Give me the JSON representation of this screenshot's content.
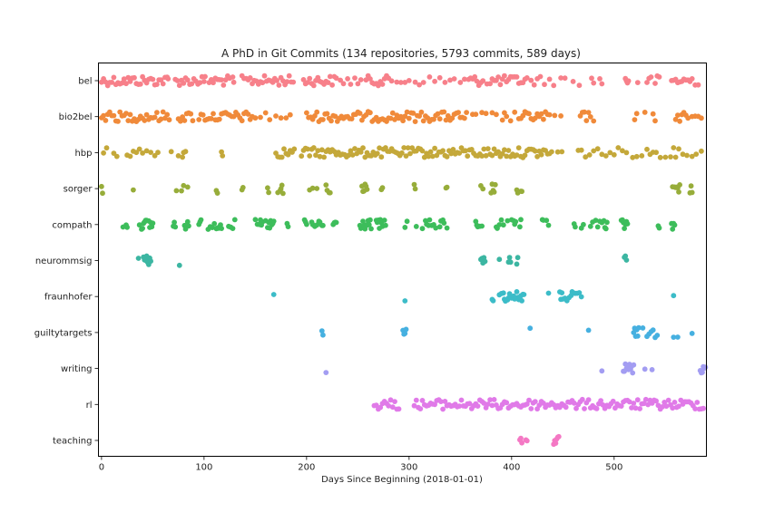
{
  "chart_data": {
    "type": "scatter",
    "title": "A PhD in Git Commits (134 repositories, 5793 commits, 589 days)",
    "xlabel": "Days Since Beginning (2018-01-01)",
    "ylabel": "",
    "xlim": [
      -3,
      590
    ],
    "xticks": [
      0,
      100,
      200,
      300,
      400,
      500
    ],
    "grid": false,
    "legend": "none",
    "categories": [
      "bel",
      "bio2bel",
      "hbp",
      "sorger",
      "compath",
      "neurommsig",
      "fraunhofer",
      "guiltytargets",
      "writing",
      "rl",
      "teaching"
    ],
    "colors": [
      "#f7808a",
      "#f08a3a",
      "#c4a83a",
      "#97ad3a",
      "#3dbd5b",
      "#3cb6a2",
      "#3cbcc8",
      "#46b0e0",
      "#a39df2",
      "#e07ae8",
      "#f478c4"
    ],
    "series": [
      {
        "name": "bel",
        "days": [
          0,
          2,
          4,
          6,
          8,
          10,
          12,
          14,
          16,
          18,
          20,
          22,
          24,
          26,
          28,
          30,
          32,
          34,
          36,
          38,
          40,
          42,
          44,
          46,
          48,
          50,
          52,
          54,
          56,
          58,
          60,
          62,
          64,
          65,
          72,
          74,
          76,
          78,
          80,
          82,
          84,
          86,
          88,
          90,
          92,
          94,
          96,
          98,
          100,
          101,
          105,
          107,
          109,
          111,
          113,
          115,
          117,
          119,
          121,
          123,
          125,
          128,
          129,
          137,
          139,
          141,
          143,
          145,
          147,
          149,
          151,
          153,
          155,
          157,
          159,
          161,
          163,
          165,
          167,
          169,
          171,
          173,
          175,
          177,
          179,
          181,
          183,
          185,
          187,
          197,
          199,
          201,
          203,
          205,
          207,
          209,
          211,
          213,
          215,
          217,
          219,
          221,
          223,
          225,
          227,
          229,
          233,
          236,
          240,
          243,
          247,
          250,
          253,
          258,
          260,
          262,
          264,
          266,
          268,
          270,
          272,
          274,
          276,
          278,
          280,
          283,
          288,
          292,
          296,
          300,
          306,
          310,
          314,
          320,
          325,
          330,
          335,
          340,
          344,
          350,
          354,
          358,
          360,
          362,
          364,
          366,
          368,
          370,
          372,
          376,
          379,
          381,
          383,
          385,
          387,
          389,
          391,
          393,
          395,
          397,
          399,
          401,
          403,
          405,
          407,
          409,
          411,
          413,
          415,
          419,
          422,
          425,
          428,
          432,
          437,
          441,
          448,
          452,
          460,
          466,
          478,
          480,
          486,
          488,
          511,
          512,
          513,
          514,
          523,
          532,
          534,
          536,
          540,
          542,
          544,
          556,
          558,
          560,
          562,
          564,
          566,
          568,
          570,
          572,
          574,
          576,
          579,
          582
        ]
      },
      {
        "name": "bio2bel",
        "days": [
          0,
          2,
          4,
          6,
          8,
          10,
          12,
          14,
          16,
          18,
          20,
          22,
          24,
          26,
          28,
          30,
          32,
          34,
          36,
          38,
          40,
          42,
          44,
          46,
          48,
          50,
          52,
          54,
          56,
          58,
          60,
          62,
          64,
          66,
          75,
          77,
          79,
          81,
          83,
          85,
          87,
          89,
          95,
          97,
          99,
          101,
          103,
          105,
          107,
          109,
          111,
          113,
          115,
          117,
          119,
          121,
          123,
          125,
          127,
          129,
          131,
          133,
          135,
          137,
          139,
          141,
          143,
          145,
          147,
          150,
          155,
          160,
          164,
          170,
          175,
          180,
          184,
          200,
          202,
          204,
          206,
          208,
          210,
          212,
          214,
          216,
          218,
          220,
          222,
          224,
          226,
          228,
          230,
          232,
          234,
          236,
          238,
          240,
          242,
          244,
          246,
          248,
          250,
          252,
          254,
          256,
          258,
          260,
          262,
          264,
          266,
          268,
          270,
          272,
          274,
          276,
          278,
          280,
          282,
          284,
          286,
          288,
          290,
          292,
          294,
          296,
          298,
          300,
          302,
          304,
          306,
          308,
          310,
          312,
          314,
          316,
          318,
          320,
          322,
          324,
          326,
          328,
          330,
          332,
          334,
          336,
          338,
          340,
          342,
          344,
          346,
          348,
          350,
          352,
          354,
          356,
          362,
          365,
          371,
          375,
          381,
          385,
          391,
          393,
          395,
          399,
          403,
          407,
          409,
          411,
          413,
          415,
          417,
          419,
          421,
          423,
          425,
          427,
          429,
          431,
          433,
          435,
          437,
          442,
          448,
          467,
          469,
          471,
          473,
          475,
          477,
          480,
          520,
          522,
          530,
          538,
          540,
          560,
          562,
          564,
          566,
          568,
          570,
          572,
          576,
          579,
          582,
          585
        ]
      },
      {
        "name": "hbp",
        "days": [
          2,
          5,
          12,
          15,
          25,
          28,
          31,
          34,
          37,
          40,
          44,
          48,
          52,
          55,
          68,
          75,
          79,
          80,
          82,
          117,
          118,
          170,
          172,
          174,
          176,
          178,
          180,
          182,
          184,
          186,
          188,
          195,
          197,
          199,
          201,
          203,
          205,
          207,
          209,
          211,
          213,
          215,
          217,
          219,
          221,
          223,
          225,
          227,
          229,
          231,
          233,
          235,
          237,
          239,
          241,
          243,
          245,
          247,
          249,
          251,
          253,
          255,
          257,
          259,
          261,
          263,
          265,
          267,
          269,
          271,
          273,
          275,
          277,
          279,
          281,
          283,
          285,
          287,
          289,
          291,
          293,
          295,
          297,
          299,
          301,
          303,
          305,
          307,
          309,
          311,
          313,
          315,
          317,
          319,
          321,
          323,
          325,
          327,
          329,
          331,
          333,
          335,
          337,
          339,
          341,
          343,
          345,
          347,
          349,
          351,
          353,
          355,
          357,
          359,
          361,
          363,
          365,
          367,
          369,
          371,
          373,
          375,
          377,
          379,
          381,
          383,
          385,
          387,
          389,
          391,
          393,
          395,
          397,
          399,
          401,
          403,
          405,
          407,
          409,
          411,
          413,
          415,
          417,
          419,
          421,
          423,
          425,
          427,
          429,
          431,
          433,
          435,
          437,
          439,
          445,
          449,
          465,
          468,
          472,
          476,
          480,
          484,
          488,
          492,
          496,
          500,
          504,
          508,
          512,
          518,
          522,
          527,
          532,
          535,
          538,
          541,
          545,
          550,
          555,
          558,
          560,
          563,
          567,
          571,
          576,
          580,
          585
        ]
      },
      {
        "name": "sorger",
        "days": [
          0,
          1,
          31,
          73,
          78,
          80,
          84,
          112,
          113,
          137,
          138,
          162,
          163,
          172,
          174,
          175,
          176,
          177,
          203,
          206,
          210,
          219,
          220,
          222,
          223,
          254,
          255,
          256,
          257,
          258,
          259,
          273,
          274,
          305,
          306,
          336,
          337,
          370,
          372,
          380,
          381,
          382,
          383,
          384,
          405,
          406,
          409,
          410,
          557,
          559,
          560,
          561,
          562,
          563,
          564,
          574,
          575,
          576
        ]
      },
      {
        "name": "compath",
        "days": [
          21,
          24,
          25,
          37,
          39,
          40,
          41,
          42,
          43,
          44,
          46,
          47,
          48,
          49,
          50,
          70,
          71,
          72,
          81,
          82,
          84,
          85,
          95,
          96,
          97,
          104,
          106,
          108,
          110,
          112,
          113,
          114,
          115,
          116,
          117,
          124,
          126,
          128,
          130,
          150,
          152,
          154,
          155,
          156,
          157,
          160,
          162,
          163,
          164,
          165,
          166,
          167,
          168,
          181,
          182,
          198,
          199,
          200,
          205,
          206,
          208,
          210,
          212,
          213,
          215,
          216,
          226,
          227,
          228,
          229,
          252,
          253,
          255,
          256,
          257,
          258,
          259,
          260,
          261,
          262,
          263,
          268,
          269,
          270,
          271,
          272,
          273,
          274,
          276,
          277,
          296,
          298,
          307,
          313,
          316,
          317,
          319,
          320,
          322,
          324,
          326,
          330,
          331,
          333,
          334,
          337,
          365,
          366,
          367,
          369,
          371,
          385,
          386,
          388,
          390,
          392,
          396,
          400,
          402,
          403,
          404,
          408,
          409,
          430,
          431,
          434,
          436,
          461,
          462,
          468,
          470,
          477,
          479,
          482,
          484,
          486,
          488,
          490,
          491,
          492,
          493,
          507,
          508,
          509,
          510,
          511,
          512,
          513,
          543,
          544,
          556,
          557,
          558,
          559
        ]
      },
      {
        "name": "neurommsig",
        "days": [
          36,
          41,
          42,
          43,
          44,
          45,
          46,
          47,
          48,
          76,
          370,
          371,
          372,
          373,
          374,
          388,
          397,
          398,
          399,
          405,
          406,
          510,
          511,
          512
        ]
      },
      {
        "name": "fraunhofer",
        "days": [
          168,
          296,
          381,
          382,
          388,
          390,
          392,
          393,
          394,
          396,
          397,
          398,
          400,
          402,
          403,
          404,
          405,
          406,
          407,
          408,
          409,
          410,
          411,
          412,
          436,
          447,
          448,
          449,
          450,
          452,
          454,
          456,
          458,
          459,
          460,
          462,
          464,
          466,
          468,
          558
        ]
      },
      {
        "name": "guiltytargets",
        "days": [
          215,
          216,
          294,
          295,
          296,
          297,
          418,
          475,
          519,
          520,
          521,
          522,
          523,
          524,
          528,
          532,
          534,
          536,
          538,
          540,
          542,
          558,
          562,
          576
        ]
      },
      {
        "name": "writing",
        "days": [
          219,
          488,
          509,
          510,
          511,
          512,
          513,
          514,
          515,
          516,
          517,
          518,
          519,
          530,
          537,
          584,
          585,
          586,
          587,
          588,
          589
        ]
      },
      {
        "name": "rl",
        "days": [
          266,
          268,
          270,
          272,
          274,
          276,
          278,
          280,
          282,
          284,
          286,
          288,
          290,
          305,
          307,
          309,
          311,
          313,
          315,
          317,
          319,
          321,
          323,
          325,
          327,
          329,
          331,
          333,
          335,
          337,
          339,
          341,
          343,
          345,
          347,
          349,
          351,
          353,
          355,
          357,
          359,
          361,
          363,
          365,
          367,
          369,
          371,
          373,
          375,
          377,
          379,
          381,
          383,
          385,
          387,
          389,
          391,
          393,
          395,
          397,
          399,
          401,
          403,
          405,
          407,
          409,
          411,
          413,
          415,
          417,
          419,
          421,
          423,
          425,
          427,
          429,
          431,
          433,
          435,
          437,
          439,
          441,
          443,
          445,
          447,
          449,
          451,
          453,
          455,
          457,
          459,
          461,
          463,
          465,
          467,
          469,
          471,
          473,
          475,
          477,
          479,
          481,
          483,
          485,
          487,
          489,
          491,
          493,
          495,
          497,
          499,
          501,
          503,
          505,
          507,
          509,
          511,
          513,
          515,
          517,
          519,
          521,
          523,
          525,
          527,
          529,
          531,
          533,
          535,
          537,
          539,
          541,
          543,
          545,
          547,
          549,
          551,
          553,
          555,
          557,
          559,
          561,
          563,
          565,
          567,
          569,
          571,
          573,
          575,
          577,
          579,
          581,
          583,
          585,
          587
        ]
      },
      {
        "name": "teaching",
        "days": [
          408,
          409,
          410,
          414,
          415,
          441,
          442,
          443,
          444,
          445,
          446
        ]
      }
    ]
  }
}
